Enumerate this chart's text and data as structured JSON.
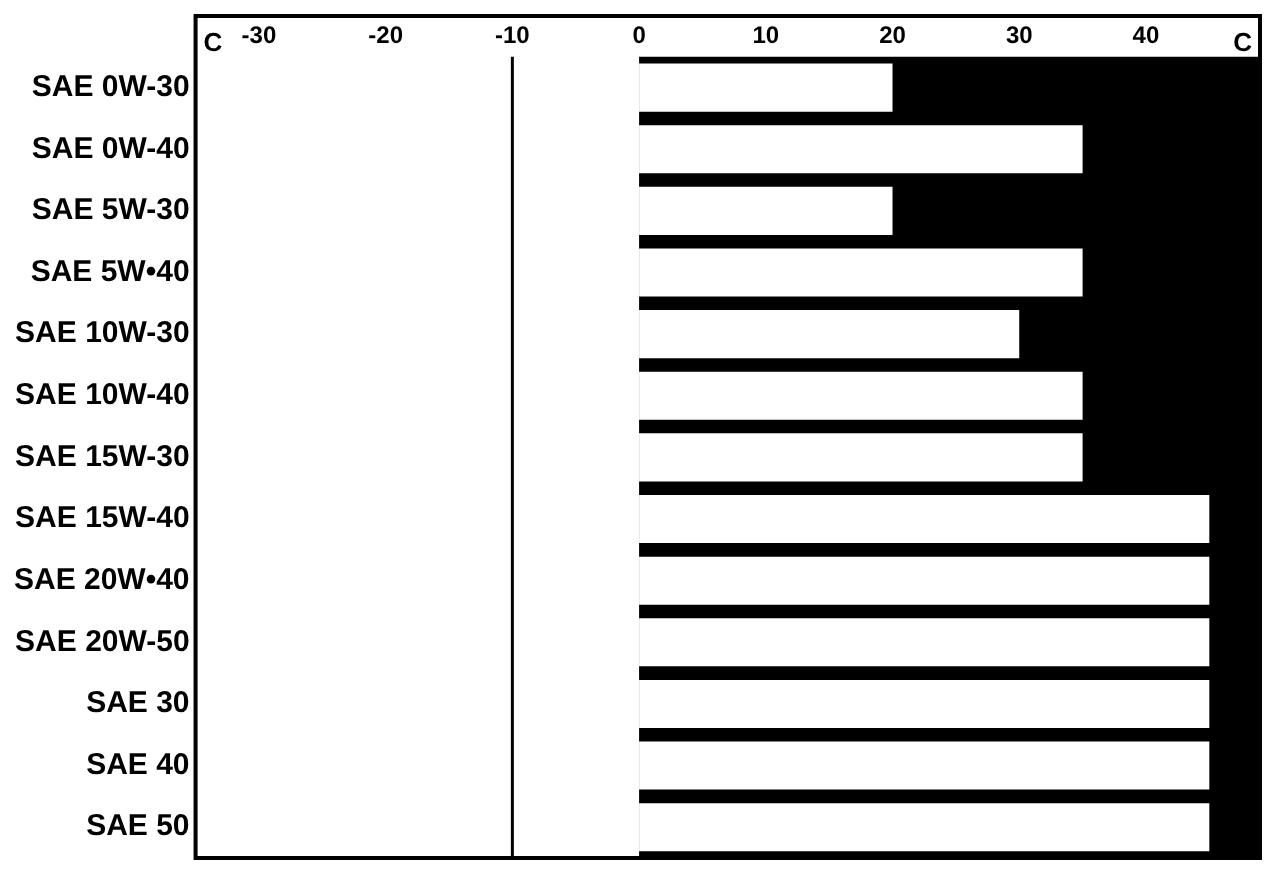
{
  "chart_data": {
    "type": "bar",
    "orientation": "horizontal",
    "categories": [
      "SAE 0W-30",
      "SAE 0W-40",
      "SAE 5W-30",
      "SAE 5W•40",
      "SAE 10W-30",
      "SAE 10W-40",
      "SAE 15W-30",
      "SAE 15W-40",
      "SAE 20W•40",
      "SAE 20W-50",
      "SAE 30",
      "SAE 40",
      "SAE 50"
    ],
    "values": [
      20,
      35,
      20,
      35,
      30,
      35,
      35,
      45,
      45,
      45,
      45,
      45,
      45
    ],
    "base": [
      0,
      0,
      0,
      0,
      0,
      0,
      0,
      0,
      0,
      0,
      0,
      0,
      0
    ],
    "color": "#ffffff",
    "xlim": [
      -35,
      49
    ],
    "xticks": [
      -30,
      -20,
      -10,
      0,
      10,
      20,
      30,
      40
    ],
    "bands": [
      {
        "axis": "x",
        "from": 0,
        "to": 49,
        "color": "#000000"
      }
    ],
    "ref_lines": [
      {
        "axis": "x",
        "value": -10,
        "color": "#000000"
      }
    ],
    "annotations": [
      "C",
      "C"
    ],
    "grid": false,
    "legend": false
  }
}
